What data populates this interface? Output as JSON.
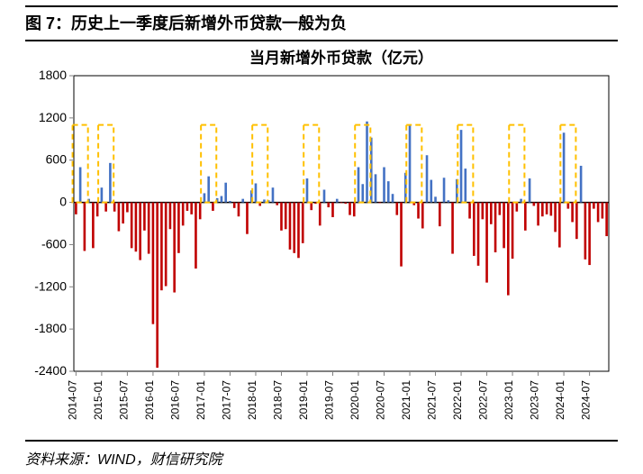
{
  "caption": "图 7：历史上一季度后新增外币贷款一般为负",
  "source": "资料来源：WIND，财信研究院",
  "chart": {
    "type": "bar",
    "title": "当月新增外币贷款（亿元）",
    "title_fontsize": 17,
    "title_weight": "700",
    "ylabel_fontsize": 14,
    "xlabel_fontsize": 12,
    "ylim": [
      -2400,
      1800
    ],
    "ytick_step": 600,
    "yticks": [
      -2400,
      -1800,
      -1200,
      -600,
      0,
      600,
      1200,
      1800
    ],
    "axis_color": "#000000",
    "tick_color": "#808080",
    "background_color": "#ffffff",
    "border_color": "#000000",
    "positive_bar_color": "#4472c4",
    "negative_bar_color": "#c00000",
    "highlight_box_color": "#ffc000",
    "highlight_box_dash": "6 4",
    "highlight_box_width": 2,
    "bar_width": 0.55,
    "xticks": [
      {
        "i": 0,
        "label": "2014-07"
      },
      {
        "i": 6,
        "label": "2015-01"
      },
      {
        "i": 12,
        "label": "2015-07"
      },
      {
        "i": 18,
        "label": "2016-01"
      },
      {
        "i": 24,
        "label": "2016-07"
      },
      {
        "i": 30,
        "label": "2017-01"
      },
      {
        "i": 36,
        "label": "2017-07"
      },
      {
        "i": 42,
        "label": "2018-01"
      },
      {
        "i": 48,
        "label": "2018-07"
      },
      {
        "i": 54,
        "label": "2019-01"
      },
      {
        "i": 60,
        "label": "2019-07"
      },
      {
        "i": 66,
        "label": "2020-01"
      },
      {
        "i": 72,
        "label": "2020-07"
      },
      {
        "i": 78,
        "label": "2021-01"
      },
      {
        "i": 84,
        "label": "2021-07"
      },
      {
        "i": 90,
        "label": "2022-01"
      },
      {
        "i": 96,
        "label": "2022-07"
      },
      {
        "i": 102,
        "label": "2023-01"
      },
      {
        "i": 108,
        "label": "2023-07"
      },
      {
        "i": 114,
        "label": "2024-01"
      },
      {
        "i": 120,
        "label": "2024-07"
      }
    ],
    "highlight_ranges": [
      [
        0,
        2
      ],
      [
        6,
        8
      ],
      [
        30,
        32
      ],
      [
        42,
        44
      ],
      [
        54,
        56
      ],
      [
        66,
        68
      ],
      [
        78,
        80
      ],
      [
        90,
        92
      ],
      [
        102,
        104
      ],
      [
        114,
        116
      ]
    ],
    "highlight_ytop": 1100,
    "highlight_ybottom": 0,
    "values": [
      -170,
      500,
      -690,
      50,
      -650,
      -200,
      210,
      -130,
      560,
      -130,
      -410,
      -300,
      -140,
      -650,
      -700,
      -820,
      -400,
      -730,
      -1730,
      -2350,
      -1250,
      -1190,
      -380,
      -1280,
      -720,
      -330,
      -120,
      -170,
      -940,
      -240,
      130,
      370,
      -120,
      60,
      90,
      280,
      20,
      -80,
      -200,
      50,
      -450,
      170,
      270,
      -50,
      40,
      30,
      210,
      -40,
      -400,
      -380,
      -670,
      -720,
      -790,
      -580,
      340,
      -110,
      -20,
      -330,
      180,
      -70,
      -210,
      50,
      -10,
      -20,
      -180,
      -200,
      500,
      260,
      1150,
      920,
      400,
      -10,
      500,
      300,
      120,
      -180,
      -910,
      420,
      1100,
      -40,
      -230,
      -370,
      670,
      320,
      80,
      -340,
      350,
      30,
      -730,
      330,
      1030,
      480,
      -230,
      -760,
      -900,
      -240,
      -1140,
      -310,
      -710,
      -180,
      -650,
      -1320,
      -800,
      -130,
      50,
      -400,
      340,
      -50,
      -330,
      -200,
      -170,
      -190,
      -420,
      -640,
      990,
      -90,
      -280,
      -520,
      520,
      -810,
      -890,
      -90,
      -280,
      -230,
      -480
    ]
  }
}
